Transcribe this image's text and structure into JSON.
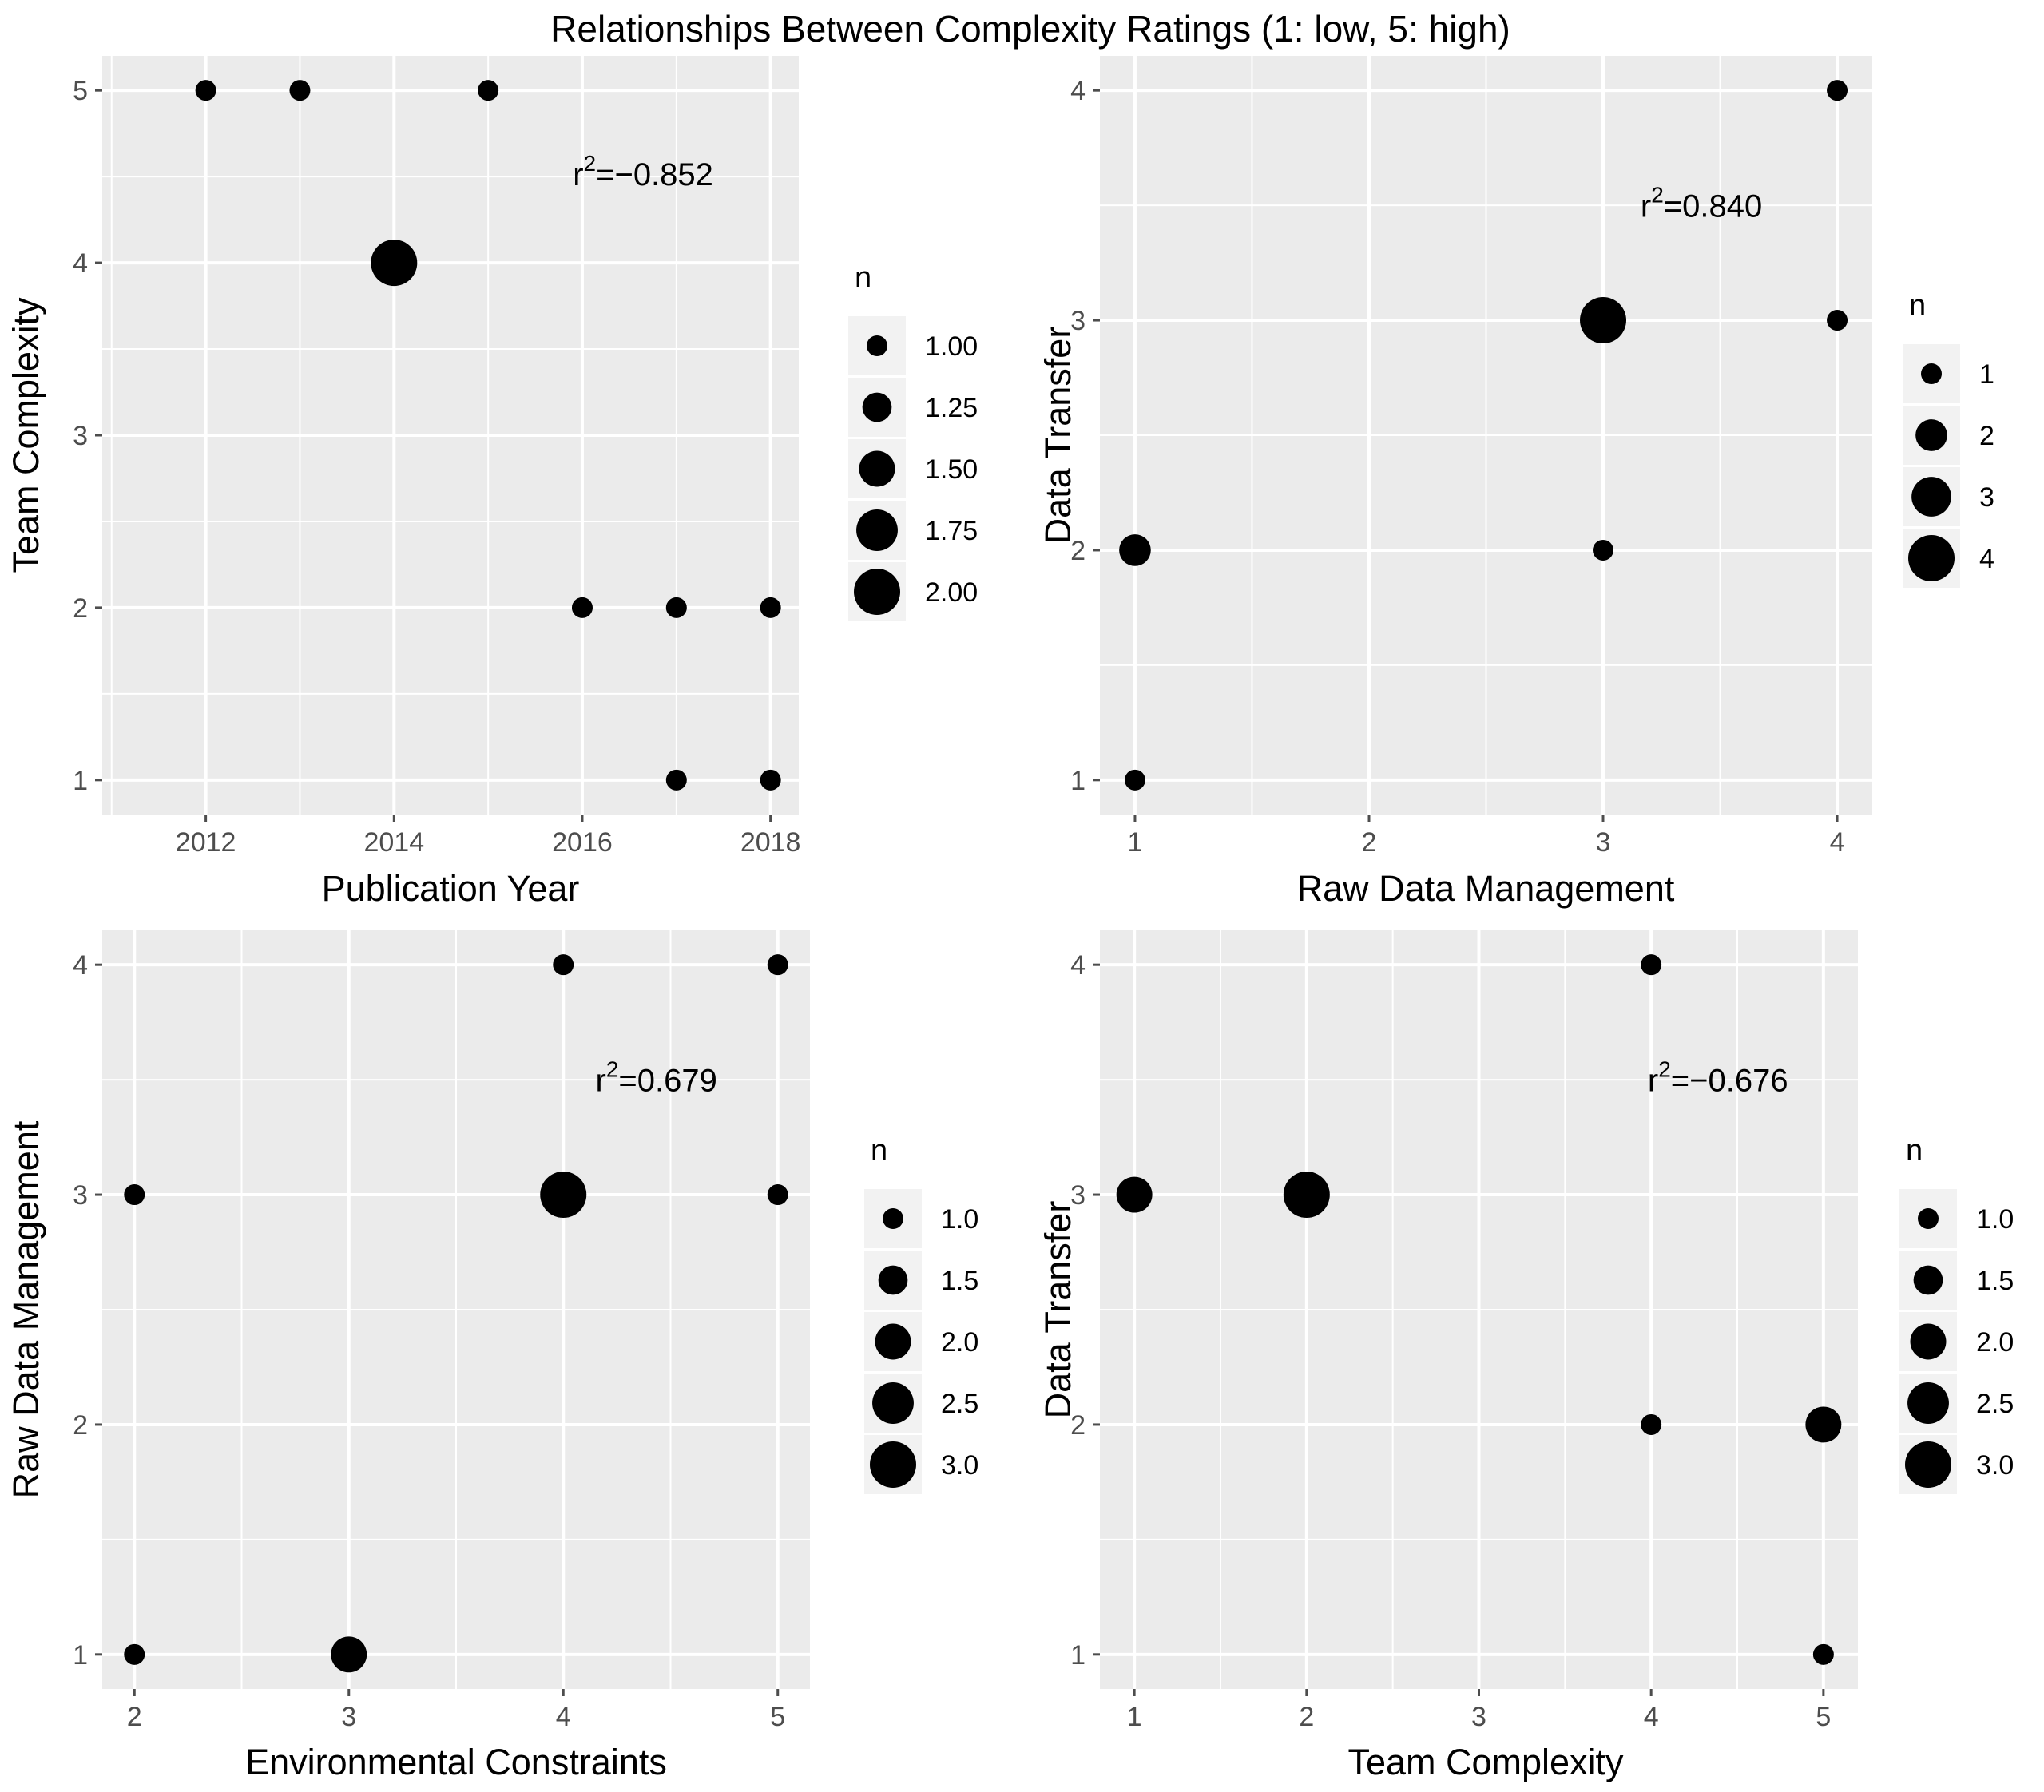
{
  "figure_title": "Relationships Between Complexity Ratings (1: low, 5: high)",
  "colors": {
    "panel_bg": "#ebebeb",
    "grid": "#ffffff",
    "point": "#000000",
    "tick": "#4d4d4d",
    "legend_key_bg": "#f2f2f2"
  },
  "chart_data": [
    {
      "type": "scatter",
      "title": "",
      "xlabel": "Publication Year",
      "ylabel": "Team Complexity",
      "xlim": [
        2010.9,
        2018.3
      ],
      "ylim": [
        0.8,
        5.2
      ],
      "xticks": [
        2012,
        2014,
        2016,
        2018
      ],
      "xminor": [
        2011,
        2013,
        2015,
        2017
      ],
      "yticks": [
        1,
        2,
        3,
        4,
        5
      ],
      "yminor": [
        1.5,
        2.5,
        3.5,
        4.5
      ],
      "points": [
        {
          "x": 2012,
          "y": 5,
          "n": 1
        },
        {
          "x": 2013,
          "y": 5,
          "n": 1
        },
        {
          "x": 2015,
          "y": 5,
          "n": 1
        },
        {
          "x": 2014,
          "y": 4,
          "n": 2
        },
        {
          "x": 2016,
          "y": 2,
          "n": 1
        },
        {
          "x": 2017,
          "y": 2,
          "n": 1
        },
        {
          "x": 2018,
          "y": 2,
          "n": 1
        },
        {
          "x": 2017,
          "y": 1,
          "n": 1
        },
        {
          "x": 2018,
          "y": 1,
          "n": 1
        }
      ],
      "size_range": [
        1,
        2
      ],
      "annotation": {
        "base": "r",
        "sup": "2",
        "value": "=−0.852",
        "x": 2015.9,
        "y": 4.45
      },
      "legend": {
        "title": "n",
        "entries": [
          {
            "label": "1.00",
            "n": 1.0
          },
          {
            "label": "1.25",
            "n": 1.25
          },
          {
            "label": "1.50",
            "n": 1.5
          },
          {
            "label": "1.75",
            "n": 1.75
          },
          {
            "label": "2.00",
            "n": 2.0
          }
        ]
      }
    },
    {
      "type": "scatter",
      "title": "",
      "xlabel": "Raw Data Management",
      "ylabel": "Data Transfer",
      "xlim": [
        0.85,
        4.15
      ],
      "ylim": [
        0.85,
        4.15
      ],
      "xticks": [
        1,
        2,
        3,
        4
      ],
      "xminor": [
        1.5,
        2.5,
        3.5
      ],
      "yticks": [
        1,
        2,
        3,
        4
      ],
      "yminor": [
        1.5,
        2.5,
        3.5
      ],
      "points": [
        {
          "x": 1,
          "y": 1,
          "n": 1
        },
        {
          "x": 1,
          "y": 2,
          "n": 2
        },
        {
          "x": 3,
          "y": 2,
          "n": 1
        },
        {
          "x": 3,
          "y": 3,
          "n": 4
        },
        {
          "x": 4,
          "y": 3,
          "n": 1
        },
        {
          "x": 4,
          "y": 4,
          "n": 1
        }
      ],
      "size_range": [
        1,
        4
      ],
      "annotation": {
        "base": "r",
        "sup": "2",
        "value": "=0.840",
        "x": 3.16,
        "y": 3.45
      },
      "legend": {
        "title": "n",
        "entries": [
          {
            "label": "1",
            "n": 1
          },
          {
            "label": "2",
            "n": 2
          },
          {
            "label": "3",
            "n": 3
          },
          {
            "label": "4",
            "n": 4
          }
        ]
      }
    },
    {
      "type": "scatter",
      "title": "",
      "xlabel": "Environmental Constraints",
      "ylabel": "Raw Data Management",
      "xlim": [
        1.85,
        5.15
      ],
      "ylim": [
        0.85,
        4.15
      ],
      "xticks": [
        2,
        3,
        4,
        5
      ],
      "xminor": [
        2.5,
        3.5,
        4.5
      ],
      "yticks": [
        1,
        2,
        3,
        4
      ],
      "yminor": [
        1.5,
        2.5,
        3.5
      ],
      "points": [
        {
          "x": 2,
          "y": 3,
          "n": 1
        },
        {
          "x": 2,
          "y": 1,
          "n": 1
        },
        {
          "x": 3,
          "y": 1,
          "n": 2
        },
        {
          "x": 4,
          "y": 4,
          "n": 1
        },
        {
          "x": 4,
          "y": 3,
          "n": 3
        },
        {
          "x": 5,
          "y": 4,
          "n": 1
        },
        {
          "x": 5,
          "y": 3,
          "n": 1
        }
      ],
      "size_range": [
        1,
        3
      ],
      "annotation": {
        "base": "r",
        "sup": "2",
        "value": "=0.679",
        "x": 4.15,
        "y": 3.45
      },
      "legend": {
        "title": "n",
        "entries": [
          {
            "label": "1.0",
            "n": 1.0
          },
          {
            "label": "1.5",
            "n": 1.5
          },
          {
            "label": "2.0",
            "n": 2.0
          },
          {
            "label": "2.5",
            "n": 2.5
          },
          {
            "label": "3.0",
            "n": 3.0
          }
        ]
      }
    },
    {
      "type": "scatter",
      "title": "",
      "xlabel": "Team Complexity",
      "ylabel": "Data Transfer",
      "xlim": [
        0.8,
        5.2
      ],
      "ylim": [
        0.85,
        4.15
      ],
      "xticks": [
        1,
        2,
        3,
        4,
        5
      ],
      "xminor": [
        1.5,
        2.5,
        3.5,
        4.5
      ],
      "yticks": [
        1,
        2,
        3,
        4
      ],
      "yminor": [
        1.5,
        2.5,
        3.5
      ],
      "points": [
        {
          "x": 1,
          "y": 3,
          "n": 2
        },
        {
          "x": 2,
          "y": 3,
          "n": 3
        },
        {
          "x": 4,
          "y": 4,
          "n": 1
        },
        {
          "x": 4,
          "y": 2,
          "n": 1
        },
        {
          "x": 5,
          "y": 2,
          "n": 2
        },
        {
          "x": 5,
          "y": 1,
          "n": 1
        }
      ],
      "size_range": [
        1,
        3
      ],
      "annotation": {
        "base": "r",
        "sup": "2",
        "value": "=−0.676",
        "x": 3.98,
        "y": 3.45
      },
      "legend": {
        "title": "n",
        "entries": [
          {
            "label": "1.0",
            "n": 1.0
          },
          {
            "label": "1.5",
            "n": 1.5
          },
          {
            "label": "2.0",
            "n": 2.0
          },
          {
            "label": "2.5",
            "n": 2.5
          },
          {
            "label": "3.0",
            "n": 3.0
          }
        ]
      }
    }
  ]
}
